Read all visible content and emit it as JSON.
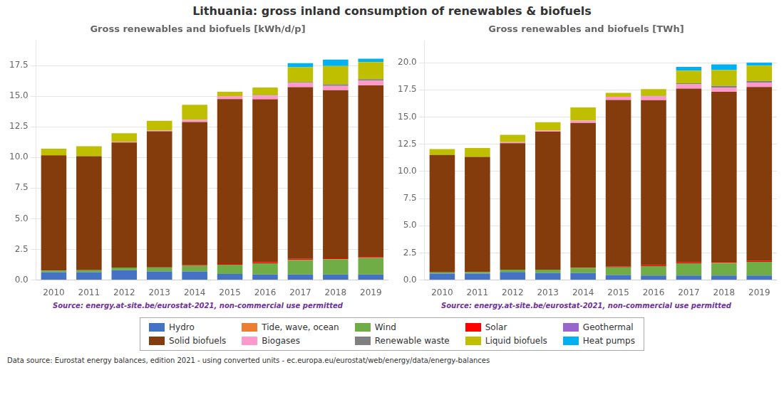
{
  "title": "Lithuania: gross inland consumption of renewables & biofuels",
  "annotations": [
    "Data source: Eurostat energy balances, edition 2021 - using converted units - ec.europa.eu/eurostat/web/energy/data/energy-balances"
  ],
  "chart_data": [
    {
      "type": "bar",
      "stacked": true,
      "grid": true,
      "legend": "bottom",
      "title": "Gross renewables and biofuels [kWh/d/p]",
      "annotations": [
        "Source: energy.at-site.be/eurostat-2021, non-commercial use permitted"
      ],
      "categories": [
        2010,
        2011,
        2012,
        2013,
        2014,
        2015,
        2016,
        2017,
        2018,
        2019
      ],
      "ylim": [
        0,
        19.5
      ],
      "yticks": [
        {
          "value": 0,
          "label": "0.0"
        },
        2.5,
        {
          "value": 5,
          "label": "5.0"
        },
        7.5,
        {
          "value": 10,
          "label": "10.0"
        },
        12.5,
        {
          "value": 15,
          "label": "15.0"
        },
        17.5
      ],
      "series": [
        {
          "name": "Hydro",
          "color": "#4472c4",
          "values": [
            0.65,
            0.65,
            0.8,
            0.7,
            0.7,
            0.5,
            0.45,
            0.45,
            0.45,
            0.45
          ]
        },
        {
          "name": "Tide, wave, ocean",
          "color": "#ed7d31",
          "values": [
            0.0,
            0.0,
            0.0,
            0.0,
            0.0,
            0.0,
            0.0,
            0.0,
            0.0,
            0.0
          ]
        },
        {
          "name": "Wind",
          "color": "#70ad47",
          "values": [
            0.12,
            0.15,
            0.22,
            0.32,
            0.5,
            0.75,
            0.92,
            1.2,
            1.25,
            1.35
          ]
        },
        {
          "name": "Solar",
          "color": "#ff0000",
          "values": [
            0.0,
            0.0,
            0.0,
            0.01,
            0.04,
            0.06,
            0.08,
            0.08,
            0.08,
            0.08
          ]
        },
        {
          "name": "Geothermal",
          "color": "#9966cc",
          "values": [
            0.0,
            0.0,
            0.0,
            0.0,
            0.0,
            0.0,
            0.0,
            0.0,
            0.0,
            0.0
          ]
        },
        {
          "name": "Solid biofuels",
          "color": "#843c0c",
          "values": [
            9.4,
            9.3,
            10.2,
            11.1,
            11.65,
            13.45,
            13.3,
            14.0,
            13.7,
            14.0
          ]
        },
        {
          "name": "Biogases",
          "color": "#ff99cc",
          "values": [
            0.0,
            0.0,
            0.08,
            0.08,
            0.18,
            0.25,
            0.3,
            0.35,
            0.35,
            0.37
          ]
        },
        {
          "name": "Renewable waste",
          "color": "#808080",
          "values": [
            0.0,
            0.0,
            0.0,
            0.0,
            0.0,
            0.0,
            0.04,
            0.08,
            0.13,
            0.13
          ]
        },
        {
          "name": "Liquid biofuels",
          "color": "#bfbf00",
          "values": [
            0.55,
            0.82,
            0.68,
            0.78,
            1.22,
            0.35,
            0.62,
            1.2,
            1.5,
            1.4
          ]
        },
        {
          "name": "Heat pumps",
          "color": "#00b0f0",
          "values": [
            0.0,
            0.0,
            0.0,
            0.0,
            0.0,
            0.0,
            0.0,
            0.33,
            0.52,
            0.28
          ]
        }
      ]
    },
    {
      "type": "bar",
      "stacked": true,
      "grid": true,
      "legend": "bottom",
      "title": "Gross renewables and biofuels [TWh]",
      "annotations": [
        "Source: energy.at-site.be/eurostat-2021, non-commercial use permitted"
      ],
      "categories": [
        2010,
        2011,
        2012,
        2013,
        2014,
        2015,
        2016,
        2017,
        2018,
        2019
      ],
      "ylim": [
        0,
        22
      ],
      "yticks": [
        {
          "value": 0,
          "label": "0.0"
        },
        2.5,
        {
          "value": 5,
          "label": "5.0"
        },
        7.5,
        {
          "value": 10,
          "label": "10.0"
        },
        12.5,
        {
          "value": 15,
          "label": "15.0"
        },
        17.5,
        {
          "value": 20,
          "label": "20.0"
        }
      ],
      "series": [
        {
          "name": "Hydro",
          "color": "#4472c4",
          "values": [
            0.6,
            0.6,
            0.75,
            0.65,
            0.65,
            0.47,
            0.42,
            0.42,
            0.42,
            0.42
          ]
        },
        {
          "name": "Tide, wave, ocean",
          "color": "#ed7d31",
          "values": [
            0.0,
            0.0,
            0.0,
            0.0,
            0.0,
            0.0,
            0.0,
            0.0,
            0.0,
            0.0
          ]
        },
        {
          "name": "Wind",
          "color": "#70ad47",
          "values": [
            0.11,
            0.14,
            0.2,
            0.3,
            0.47,
            0.7,
            0.86,
            1.12,
            1.17,
            1.26
          ]
        },
        {
          "name": "Solar",
          "color": "#ff0000",
          "values": [
            0.0,
            0.0,
            0.0,
            0.01,
            0.04,
            0.06,
            0.08,
            0.08,
            0.08,
            0.08
          ]
        },
        {
          "name": "Geothermal",
          "color": "#9966cc",
          "values": [
            0.0,
            0.0,
            0.0,
            0.0,
            0.0,
            0.0,
            0.0,
            0.0,
            0.0,
            0.0
          ]
        },
        {
          "name": "Solid biofuels",
          "color": "#843c0c",
          "values": [
            10.8,
            10.6,
            11.65,
            12.7,
            13.3,
            15.35,
            15.2,
            16.0,
            15.65,
            16.0
          ]
        },
        {
          "name": "Biogases",
          "color": "#ff99cc",
          "values": [
            0.0,
            0.0,
            0.09,
            0.09,
            0.21,
            0.29,
            0.34,
            0.4,
            0.4,
            0.42
          ]
        },
        {
          "name": "Renewable waste",
          "color": "#808080",
          "values": [
            0.0,
            0.0,
            0.0,
            0.0,
            0.0,
            0.0,
            0.05,
            0.09,
            0.15,
            0.15
          ]
        },
        {
          "name": "Liquid biofuels",
          "color": "#bfbf00",
          "values": [
            0.55,
            0.82,
            0.68,
            0.78,
            1.22,
            0.35,
            0.62,
            1.17,
            1.45,
            1.4
          ]
        },
        {
          "name": "Heat pumps",
          "color": "#00b0f0",
          "values": [
            0.0,
            0.0,
            0.0,
            0.0,
            0.0,
            0.0,
            0.0,
            0.33,
            0.52,
            0.28
          ]
        }
      ]
    }
  ]
}
